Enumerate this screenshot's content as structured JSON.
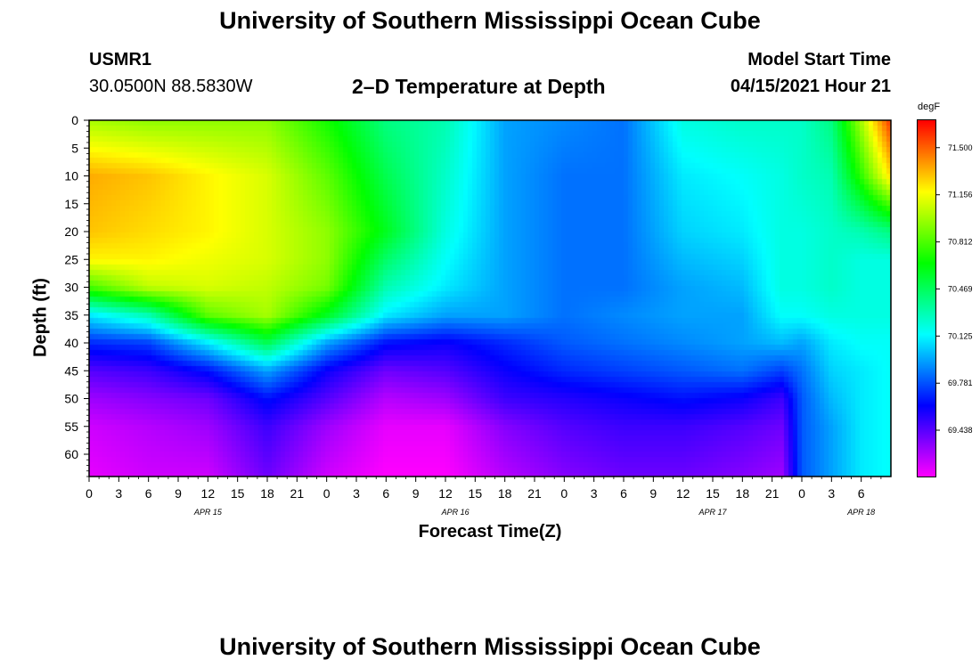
{
  "title_top": "University of Southern Mississippi Ocean Cube",
  "title_bottom": "University of Southern Mississippi Ocean Cube",
  "station": "USMR1",
  "location": "30.0500N  88.5830W",
  "plot_subtitle": "2–D Temperature at Depth",
  "model_start_label": "Model Start Time",
  "model_start_value": "04/15/2021 Hour 21",
  "colors": {
    "palette": [
      "#ff00ff",
      "#8000ff",
      "#0000ff",
      "#0080ff",
      "#00ffff",
      "#00ff80",
      "#00ff00",
      "#80ff00",
      "#ffff00",
      "#ff8000",
      "#ff0000"
    ]
  },
  "chart_data": {
    "type": "heatmap",
    "xlabel": "Forecast Time(Z)",
    "ylabel": "Depth (ft)",
    "x_hours_range": [
      0,
      81
    ],
    "x_tick_step_hours": 3,
    "x_tick_labels": [
      "0",
      "3",
      "6",
      "9",
      "12",
      "15",
      "18",
      "21",
      "0",
      "3",
      "6",
      "9",
      "12",
      "15",
      "18",
      "21",
      "0",
      "3",
      "6",
      "9",
      "12",
      "15",
      "18",
      "21",
      "0",
      "3",
      "6"
    ],
    "day_labels": [
      {
        "label": "APR 15",
        "hour": 12
      },
      {
        "label": "APR 16",
        "hour": 37
      },
      {
        "label": "APR 17",
        "hour": 63
      },
      {
        "label": "APR 18",
        "hour": 78
      }
    ],
    "y_range": [
      0,
      64
    ],
    "y_tick_labels": [
      "0",
      "5",
      "10",
      "15",
      "20",
      "25",
      "30",
      "35",
      "40",
      "45",
      "50",
      "55",
      "60"
    ],
    "y_ticks": [
      0,
      5,
      10,
      15,
      20,
      25,
      30,
      35,
      40,
      45,
      50,
      55,
      60
    ],
    "colorbar": {
      "unit": "degF",
      "min": 69.1,
      "max": 71.7,
      "labels": [
        "71.500",
        "71.156",
        "70.812",
        "70.469",
        "70.125",
        "69.781",
        "69.438"
      ],
      "values": [
        71.5,
        71.156,
        70.812,
        70.469,
        70.125,
        69.781,
        69.438
      ]
    },
    "profiles_hours": [
      0,
      6,
      12,
      18,
      24,
      30,
      36,
      42,
      48,
      54,
      60,
      66,
      70,
      72,
      75,
      78,
      81
    ],
    "depths": [
      0,
      10,
      20,
      25,
      30,
      35,
      40,
      45,
      50,
      55,
      64
    ],
    "temperatures": [
      [
        71.0,
        71.35,
        71.3,
        71.2,
        70.8,
        70.1,
        69.7,
        69.45,
        69.3,
        69.2,
        69.15
      ],
      [
        70.95,
        71.3,
        71.25,
        71.2,
        71.05,
        70.3,
        69.75,
        69.5,
        69.35,
        69.25,
        69.2
      ],
      [
        70.95,
        71.2,
        71.2,
        71.15,
        71.1,
        70.85,
        70.1,
        69.65,
        69.4,
        69.3,
        69.2
      ],
      [
        70.95,
        71.1,
        71.1,
        71.1,
        71.05,
        71.0,
        70.5,
        69.95,
        69.65,
        69.5,
        69.4
      ],
      [
        70.7,
        70.85,
        70.95,
        70.95,
        70.9,
        70.6,
        69.95,
        69.6,
        69.45,
        69.3,
        69.2
      ],
      [
        70.4,
        70.5,
        70.6,
        70.45,
        70.3,
        70.1,
        69.65,
        69.4,
        69.25,
        69.15,
        69.1
      ],
      [
        70.3,
        70.25,
        70.2,
        70.15,
        70.1,
        69.95,
        69.6,
        69.45,
        69.3,
        69.15,
        69.1
      ],
      [
        69.95,
        69.95,
        69.95,
        69.95,
        69.95,
        69.95,
        69.7,
        69.6,
        69.5,
        69.35,
        69.25
      ],
      [
        69.9,
        69.85,
        69.85,
        69.85,
        69.85,
        69.85,
        69.8,
        69.7,
        69.55,
        69.45,
        69.35
      ],
      [
        69.85,
        69.85,
        69.85,
        69.85,
        69.85,
        69.9,
        69.85,
        69.75,
        69.6,
        69.5,
        69.4
      ],
      [
        70.2,
        70.1,
        70.05,
        70.0,
        69.95,
        69.95,
        69.9,
        69.8,
        69.65,
        69.5,
        69.4
      ],
      [
        70.25,
        70.15,
        70.1,
        70.05,
        70.0,
        69.95,
        69.95,
        69.85,
        69.6,
        69.45,
        69.35
      ],
      [
        70.25,
        70.2,
        70.2,
        70.2,
        70.2,
        70.15,
        70.0,
        69.75,
        69.5,
        69.4,
        69.3
      ],
      [
        70.25,
        70.25,
        70.2,
        70.2,
        70.2,
        70.15,
        69.95,
        69.85,
        69.8,
        69.8,
        69.8
      ],
      [
        70.4,
        70.3,
        70.25,
        70.25,
        70.25,
        70.2,
        70.1,
        70.05,
        70.0,
        69.95,
        69.95
      ],
      [
        71.0,
        70.75,
        70.3,
        70.2,
        70.2,
        70.2,
        70.15,
        70.1,
        70.1,
        70.1,
        70.1
      ],
      [
        71.6,
        71.25,
        70.4,
        70.2,
        70.2,
        70.2,
        70.15,
        70.15,
        70.15,
        70.15,
        70.15
      ]
    ]
  }
}
